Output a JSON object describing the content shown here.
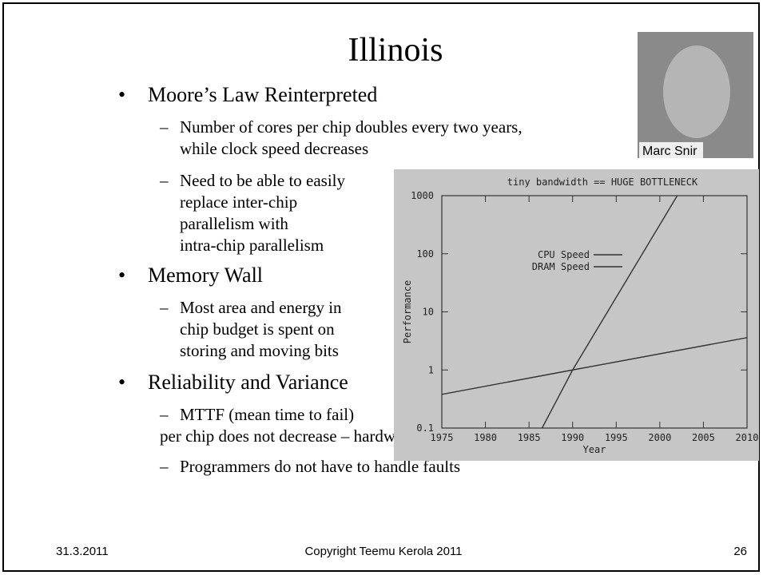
{
  "slide": {
    "title": "Illinois",
    "bullets": [
      {
        "text": "Moore’s Law Reinterpreted",
        "subs": [
          [
            "Number of cores per chip doubles every two years,",
            "while clock speed decreases"
          ],
          [
            "Need to be able to easily",
            "replace inter-chip",
            "parallelism with",
            "intra-chip parallelism"
          ]
        ]
      },
      {
        "text": "Memory Wall",
        "subs": [
          [
            "Most area and energy in",
            "chip budget is spent on",
            "storing and moving bits"
          ]
        ]
      },
      {
        "text": "Reliability and Variance",
        "subs": [
          [
            "MTTF (mean time to fail)",
            "per chip does not decrease – hardware is used to mask errors"
          ],
          [
            "Programmers do not have to handle faults"
          ]
        ]
      }
    ],
    "photo_caption": "Marc Snir",
    "footer": {
      "date": "31.3.2011",
      "copyright": "Copyright Teemu Kerola 2011",
      "page": "26"
    }
  },
  "chart_data": {
    "type": "line",
    "title": "tiny bandwidth == HUGE BOTTLENECK",
    "x_label": "Year",
    "y_label": "Performance",
    "log_y": true,
    "xlim": [
      1975,
      2010
    ],
    "xticks": [
      1975,
      1980,
      1985,
      1990,
      1995,
      2000,
      2005,
      2010
    ],
    "ylim": [
      0.1,
      1000
    ],
    "yticks": [
      0.1,
      1,
      10,
      100,
      1000
    ],
    "series": [
      {
        "name": "CPU Speed",
        "color": "#333333",
        "x": [
          1986.5,
          1990,
          2002
        ],
        "values": [
          0.1,
          1,
          1000
        ]
      },
      {
        "name": "DRAM Speed",
        "color": "#333333",
        "x": [
          1975,
          1990,
          2010
        ],
        "values": [
          0.38,
          1,
          3.6
        ]
      }
    ]
  }
}
